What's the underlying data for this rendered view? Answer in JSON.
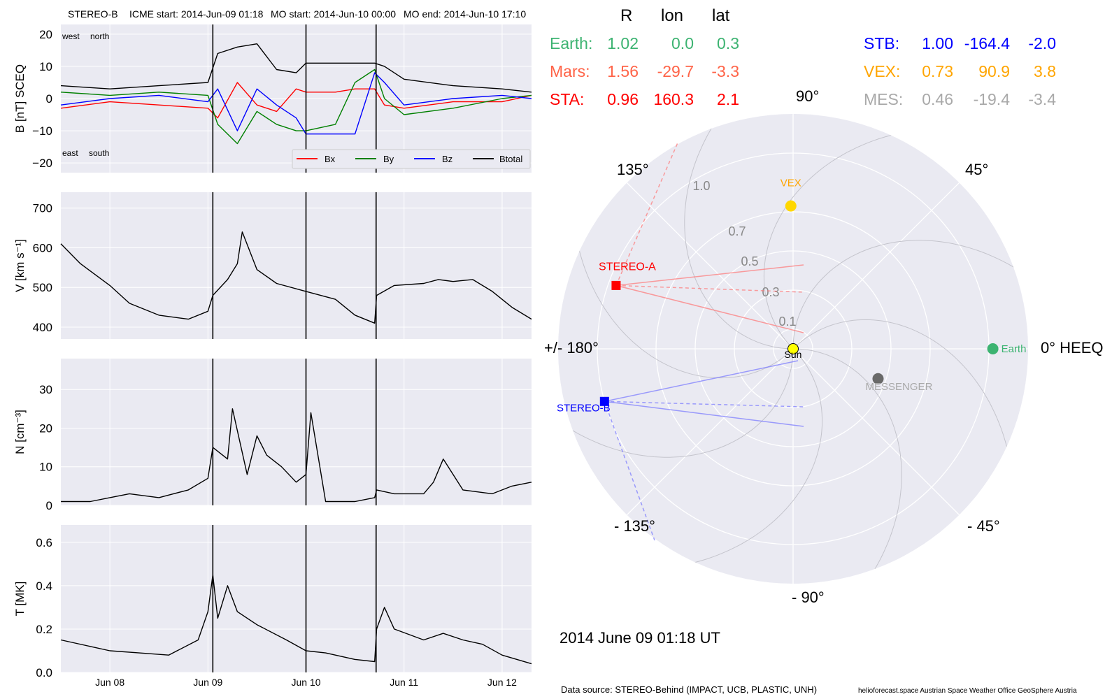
{
  "header": {
    "spacecraft": "STEREO-B",
    "icme_start": "ICME start: 2014-Jun-09 01:18",
    "mo_start": "MO start: 2014-Jun-10 00:00",
    "mo_end": "MO end: 2014-Jun-10 17:10"
  },
  "colors": {
    "bx": "#ff0000",
    "by": "#008000",
    "bz": "#0000ff",
    "btotal": "#000000",
    "panel_bg": "#eaeaf2",
    "earth": "#3cb371",
    "mars": "#ff6347",
    "sta": "#ff0000",
    "stb": "#0000ff",
    "vex": "#ffa500",
    "mes": "#a9a9a9",
    "sun": "#ffff00"
  },
  "footer": {
    "datetime": "2014 June 09  01:18 UT",
    "source": "Data source: STEREO-Behind (IMPACT, UCB, PLASTIC, UNH)",
    "credits": "helioforecast.space   Austrian Space Weather Office   GeoSphere Austria"
  },
  "table": {
    "headers": [
      "R",
      "lon",
      "lat"
    ],
    "rows": [
      {
        "name": "Earth:",
        "R": "1.02",
        "lon": "0.0",
        "lat": "0.3",
        "color": "#3cb371"
      },
      {
        "name": "Mars:",
        "R": "1.56",
        "lon": "-29.7",
        "lat": "-3.3",
        "color": "#ff6347"
      },
      {
        "name": "STA:",
        "R": "0.96",
        "lon": "160.3",
        "lat": "2.1",
        "color": "#ff0000"
      },
      {
        "name": "STB:",
        "R": "1.00",
        "lon": "-164.4",
        "lat": "-2.0",
        "color": "#0000ff"
      },
      {
        "name": "VEX:",
        "R": "0.73",
        "lon": "90.9",
        "lat": "3.8",
        "color": "#ffa500"
      },
      {
        "name": "MES:",
        "R": "0.46",
        "lon": "-19.4",
        "lat": "-3.4",
        "color": "#a9a9a9"
      }
    ]
  },
  "chart_data": [
    {
      "type": "line",
      "ylabel": "B [nT] SCEQ",
      "ylim": [
        -23,
        23
      ],
      "yticks": [
        "20",
        "10",
        "0",
        "−10",
        "−20"
      ],
      "grid": true,
      "corner_labels": [
        "west",
        "north",
        "east",
        "south"
      ],
      "legend_position": "lower-right",
      "series": [
        {
          "name": "Bx",
          "color": "#ff0000",
          "x": [
            7.5,
            8.0,
            8.5,
            9.0,
            9.1,
            9.3,
            9.5,
            9.7,
            9.9,
            10.0,
            10.3,
            10.5,
            10.7,
            10.8,
            11.0,
            11.5,
            12.0,
            12.3
          ],
          "y": [
            -3,
            -1,
            -2,
            -3,
            -6,
            5,
            -2,
            -4,
            3,
            2,
            2,
            3,
            3,
            -2,
            -3,
            -1,
            -1,
            1
          ]
        },
        {
          "name": "By",
          "color": "#008000",
          "x": [
            7.5,
            8.0,
            8.5,
            9.0,
            9.1,
            9.3,
            9.5,
            9.7,
            9.9,
            10.0,
            10.3,
            10.5,
            10.7,
            10.8,
            11.0,
            11.5,
            12.0,
            12.3
          ],
          "y": [
            2,
            1,
            2,
            1,
            -8,
            -14,
            -4,
            -8,
            -10,
            -10,
            -8,
            5,
            9,
            0,
            -5,
            -3,
            0,
            1
          ]
        },
        {
          "name": "Bz",
          "color": "#0000ff",
          "x": [
            7.5,
            8.0,
            8.5,
            9.0,
            9.1,
            9.3,
            9.5,
            9.7,
            9.9,
            10.0,
            10.3,
            10.5,
            10.7,
            10.8,
            11.0,
            11.5,
            12.0,
            12.3
          ],
          "y": [
            -2,
            0,
            1,
            -1,
            3,
            -10,
            3,
            -2,
            -6,
            -11,
            -11,
            -11,
            8,
            5,
            -2,
            0,
            1,
            0
          ]
        },
        {
          "name": "Btotal",
          "color": "#000000",
          "x": [
            7.5,
            8.0,
            8.5,
            9.0,
            9.1,
            9.3,
            9.5,
            9.7,
            9.9,
            10.0,
            10.3,
            10.5,
            10.7,
            10.8,
            11.0,
            11.5,
            12.0,
            12.3
          ],
          "y": [
            4,
            3,
            4,
            5,
            14,
            16,
            17,
            9,
            8,
            11,
            11,
            11,
            11,
            10,
            6,
            4,
            3,
            2
          ]
        }
      ]
    },
    {
      "type": "line",
      "ylabel": "V [km s⁻¹]",
      "ylim": [
        370,
        740
      ],
      "yticks": [
        "700",
        "600",
        "500",
        "400"
      ],
      "grid": true,
      "series": [
        {
          "name": "",
          "color": "#000000",
          "x": [
            7.5,
            7.7,
            8.0,
            8.2,
            8.5,
            8.8,
            9.0,
            9.05,
            9.2,
            9.3,
            9.35,
            9.5,
            9.7,
            10.0,
            10.3,
            10.5,
            10.7,
            10.72,
            10.9,
            11.2,
            11.35,
            11.5,
            11.7,
            11.9,
            12.1,
            12.3
          ],
          "y": [
            610,
            560,
            505,
            460,
            430,
            420,
            440,
            480,
            520,
            560,
            640,
            545,
            510,
            490,
            470,
            430,
            410,
            480,
            505,
            510,
            520,
            515,
            520,
            490,
            450,
            420
          ]
        }
      ]
    },
    {
      "type": "line",
      "ylabel": "N [cm⁻³]",
      "ylim": [
        0,
        38
      ],
      "yticks": [
        "30",
        "20",
        "10",
        "0"
      ],
      "grid": true,
      "series": [
        {
          "name": "",
          "color": "#000000",
          "x": [
            7.5,
            7.8,
            8.0,
            8.2,
            8.5,
            8.8,
            9.0,
            9.05,
            9.2,
            9.25,
            9.4,
            9.5,
            9.6,
            9.75,
            9.9,
            10.0,
            10.05,
            10.2,
            10.5,
            10.7,
            10.72,
            10.9,
            11.2,
            11.3,
            11.4,
            11.6,
            11.9,
            12.1,
            12.3
          ],
          "y": [
            1,
            1,
            2,
            3,
            2,
            4,
            7,
            15,
            12,
            25,
            8,
            18,
            13,
            10,
            6,
            8,
            24,
            1,
            1,
            2,
            4,
            3,
            3,
            6,
            12,
            4,
            3,
            5,
            6
          ]
        }
      ]
    },
    {
      "type": "line",
      "ylabel": "T [MK]",
      "ylim": [
        0,
        0.68
      ],
      "yticks": [
        "0.6",
        "0.4",
        "0.2",
        "0.0"
      ],
      "xlabels": [
        "Jun 08",
        "Jun 09",
        "Jun 10",
        "Jun 11",
        "Jun 12"
      ],
      "grid": true,
      "series": [
        {
          "name": "",
          "color": "#000000",
          "x": [
            7.5,
            7.8,
            8.0,
            8.3,
            8.6,
            8.9,
            9.0,
            9.05,
            9.1,
            9.2,
            9.3,
            9.5,
            9.8,
            10.0,
            10.2,
            10.5,
            10.7,
            10.72,
            10.8,
            10.9,
            11.2,
            11.4,
            11.6,
            11.8,
            12.0,
            12.3
          ],
          "y": [
            0.15,
            0.12,
            0.1,
            0.09,
            0.08,
            0.15,
            0.28,
            0.45,
            0.25,
            0.4,
            0.28,
            0.22,
            0.15,
            0.1,
            0.09,
            0.06,
            0.05,
            0.2,
            0.3,
            0.2,
            0.15,
            0.18,
            0.15,
            0.13,
            0.08,
            0.04
          ]
        }
      ]
    },
    {
      "type": "scatter",
      "title": "",
      "coordinate_system": "HEEQ polar",
      "angle_labels": [
        "90°",
        "45°",
        "0° HEEQ",
        "- 45°",
        "- 90°",
        "- 135°",
        "+/- 180°",
        "135°"
      ],
      "radial_ticks": [
        "1.0",
        "0.7",
        "0.5",
        "0.3",
        "0.1"
      ],
      "rmax": 1.2,
      "grid": true,
      "objects": [
        {
          "name": "Sun",
          "r": 0.0,
          "lon": 0.0,
          "color": "#ffff00"
        },
        {
          "name": "Earth",
          "r": 1.02,
          "lon": 0.0,
          "color": "#3cb371"
        },
        {
          "name": "VEX",
          "r": 0.73,
          "lon": 90.9,
          "color": "#ffa500"
        },
        {
          "name": "MESSENGER",
          "r": 0.46,
          "lon": -19.4,
          "color": "#a9a9a9"
        },
        {
          "name": "STEREO-A",
          "r": 0.96,
          "lon": 160.3,
          "color": "#ff0000"
        },
        {
          "name": "STEREO-B",
          "r": 1.0,
          "lon": -164.4,
          "color": "#0000ff"
        }
      ]
    }
  ]
}
